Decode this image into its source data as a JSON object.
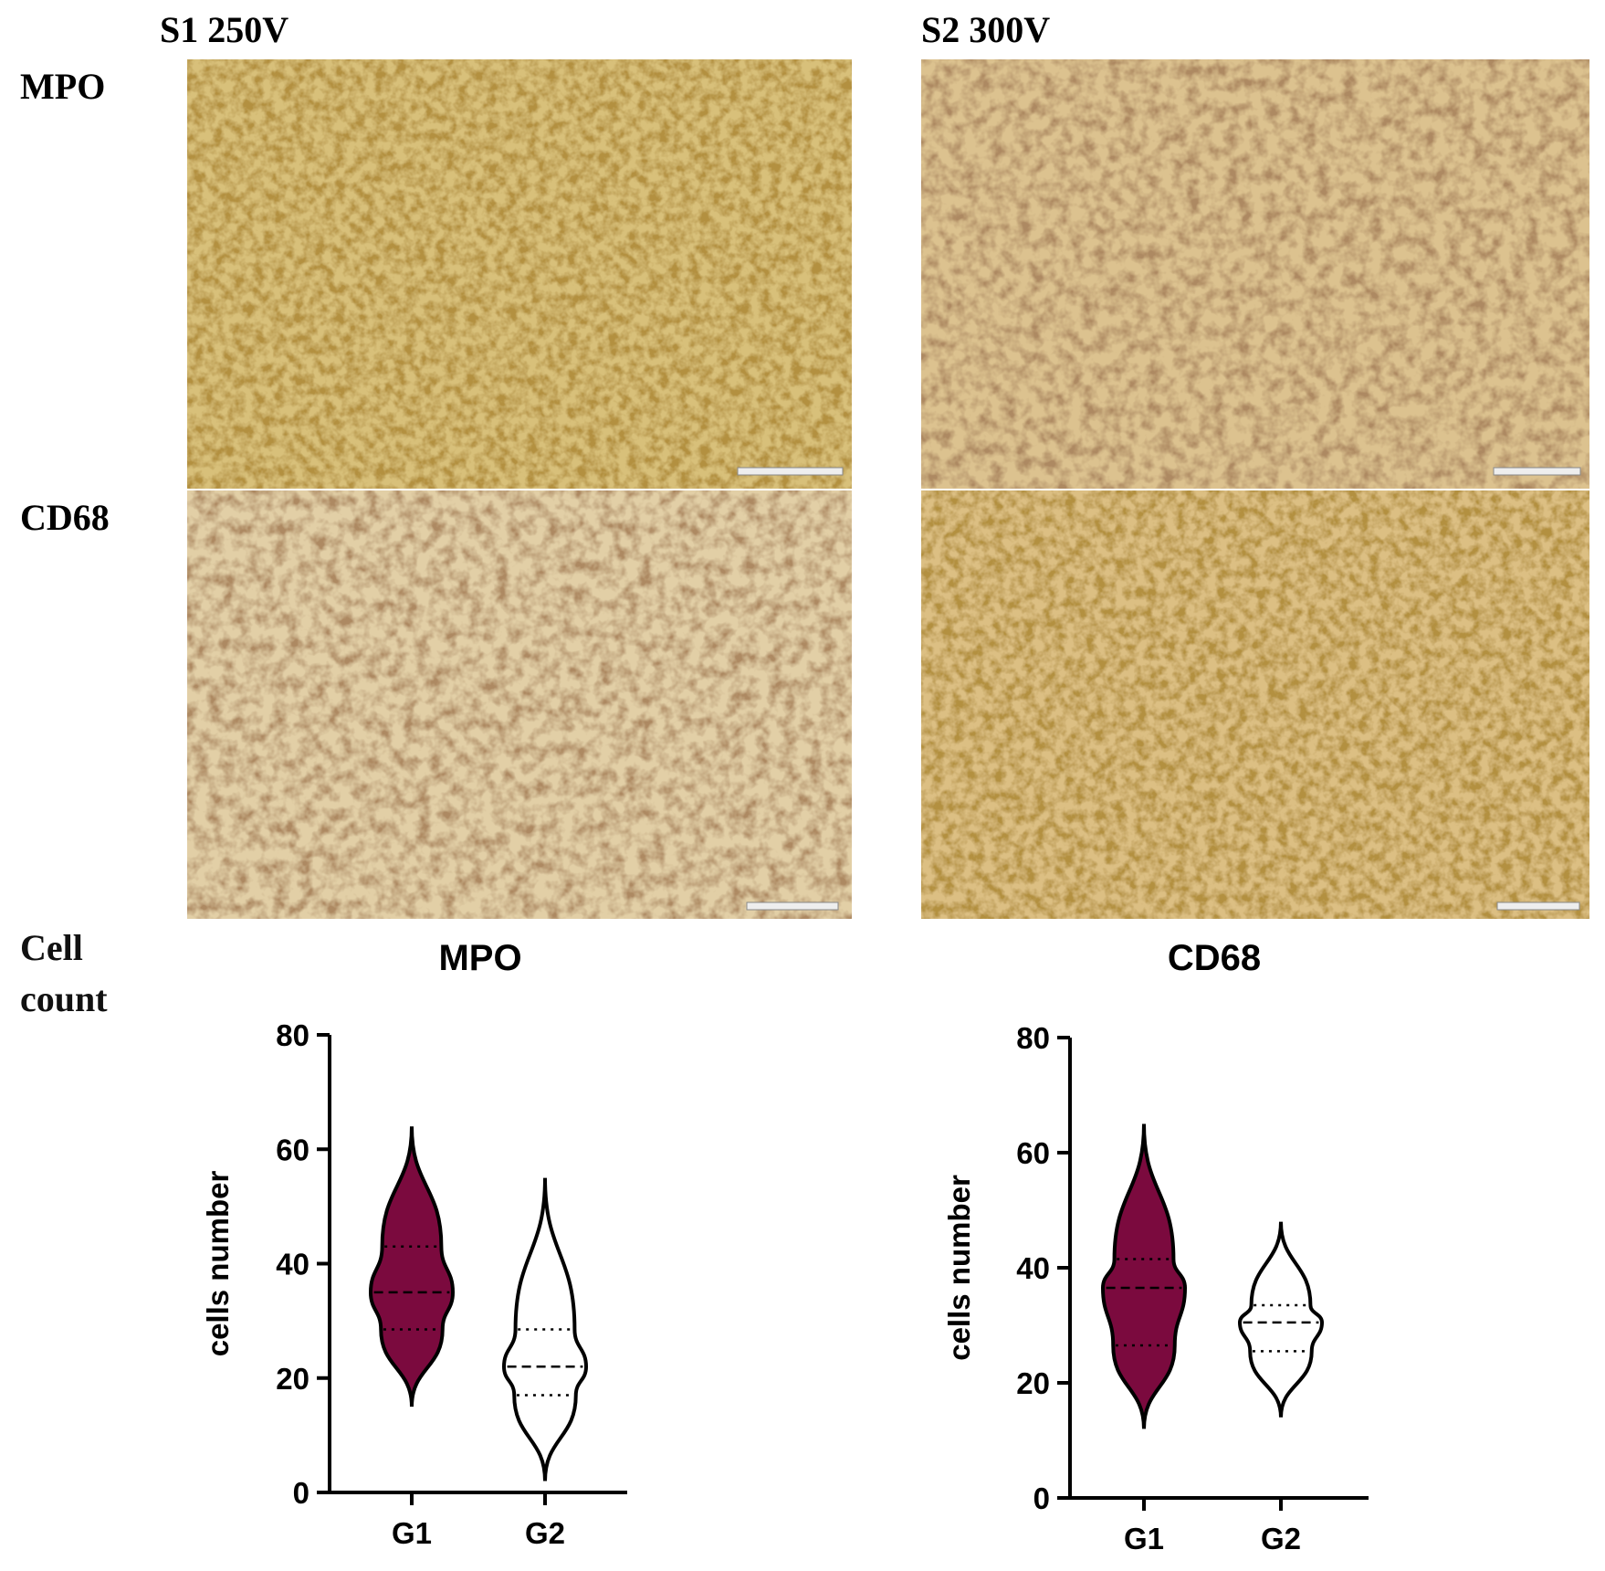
{
  "labels": {
    "left_column": "S1 250V",
    "right_column": "S2 300V",
    "row_1": "MPO",
    "row_2": "CD68",
    "row_3": "Cell count"
  },
  "chart_data": [
    {
      "type": "violin",
      "title": "MPO",
      "y_label": "cells number",
      "categories": [
        "G1",
        "G2"
      ],
      "min": [
        15,
        2
      ],
      "q1": [
        28.5,
        17
      ],
      "median": [
        35,
        22
      ],
      "q3": [
        43,
        28.5
      ],
      "max": [
        64,
        55
      ],
      "colors": [
        "#7b0a3e",
        "#ffffff"
      ],
      "ylim": [
        0,
        80
      ],
      "yticks": [
        0,
        20,
        40,
        60,
        80
      ]
    },
    {
      "type": "violin",
      "title": "CD68",
      "y_label": "cells number",
      "categories": [
        "G1",
        "G2"
      ],
      "min": [
        12,
        14
      ],
      "q1": [
        26.5,
        25.5
      ],
      "median": [
        36.5,
        30.5
      ],
      "q3": [
        41.5,
        33.5
      ],
      "max": [
        65,
        48
      ],
      "colors": [
        "#7b0a3e",
        "#ffffff"
      ],
      "ylim": [
        0,
        80
      ],
      "yticks": [
        0,
        20,
        40,
        60,
        80
      ]
    }
  ]
}
